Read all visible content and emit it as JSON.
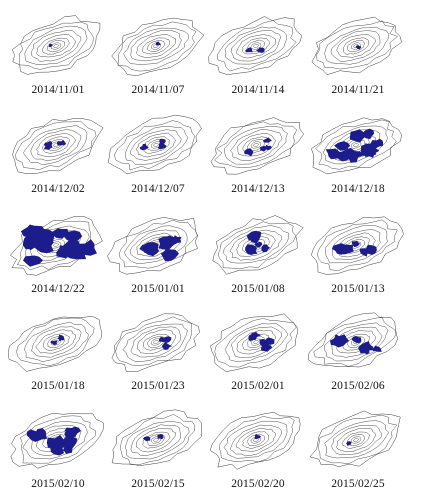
{
  "colors": {
    "contour": "#3a3a3a",
    "patch": "#1c1c8c",
    "background": "#ffffff"
  },
  "panels": [
    {
      "date": "2014/11/01",
      "coverage": 0.02
    },
    {
      "date": "2014/11/07",
      "coverage": 0.02
    },
    {
      "date": "2014/11/14",
      "coverage": 0.14
    },
    {
      "date": "2014/11/21",
      "coverage": 0.02
    },
    {
      "date": "2014/12/02",
      "coverage": 0.22
    },
    {
      "date": "2014/12/07",
      "coverage": 0.22
    },
    {
      "date": "2014/12/13",
      "coverage": 0.28
    },
    {
      "date": "2014/12/18",
      "coverage": 0.62
    },
    {
      "date": "2014/12/22",
      "coverage": 0.9
    },
    {
      "date": "2015/01/01",
      "coverage": 0.55
    },
    {
      "date": "2015/01/08",
      "coverage": 0.45
    },
    {
      "date": "2015/01/13",
      "coverage": 0.4
    },
    {
      "date": "2015/01/18",
      "coverage": 0.12
    },
    {
      "date": "2015/01/23",
      "coverage": 0.22
    },
    {
      "date": "2015/02/01",
      "coverage": 0.38
    },
    {
      "date": "2015/02/06",
      "coverage": 0.5
    },
    {
      "date": "2015/02/10",
      "coverage": 0.6
    },
    {
      "date": "2015/02/15",
      "coverage": 0.12
    },
    {
      "date": "2015/02/20",
      "coverage": 0.1
    },
    {
      "date": "2015/02/25",
      "coverage": 0.1
    }
  ]
}
